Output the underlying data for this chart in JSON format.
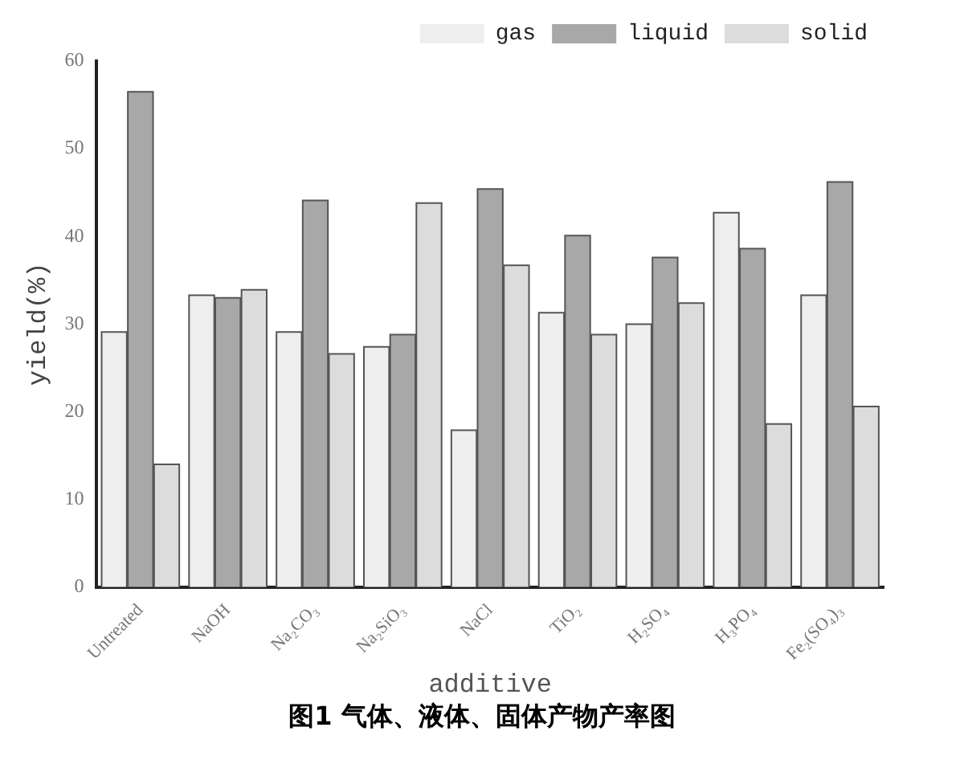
{
  "chart_data": {
    "type": "bar",
    "title": "图1 气体、液体、固体产物产率图",
    "xlabel": "additive",
    "ylabel": "yield(%)",
    "categories": [
      "Untreated",
      "NaOH",
      "Na₂CO₃",
      "Na₂SiO₃",
      "NaCl",
      "TiO₂",
      "H₂SO₄",
      "H₃PO₄",
      "Fe₂(SO₄)₃"
    ],
    "series": [
      {
        "name": "gas",
        "color": "#eeeeee",
        "values": [
          29.1,
          33.3,
          29.1,
          27.4,
          17.9,
          31.3,
          30.0,
          42.7,
          33.3
        ]
      },
      {
        "name": "liquid",
        "color": "#a8a8a8",
        "values": [
          56.5,
          33.0,
          44.1,
          28.8,
          45.4,
          40.1,
          37.6,
          38.6,
          46.2
        ]
      },
      {
        "name": "solid",
        "color": "#dcdcdc",
        "values": [
          14.0,
          33.9,
          26.6,
          43.8,
          36.7,
          28.8,
          32.4,
          18.6,
          20.6
        ]
      }
    ],
    "ylim": [
      0,
      60
    ],
    "yticks": [
      0,
      10,
      20,
      30,
      40,
      50,
      60
    ],
    "grid": false,
    "legend": "top right"
  }
}
